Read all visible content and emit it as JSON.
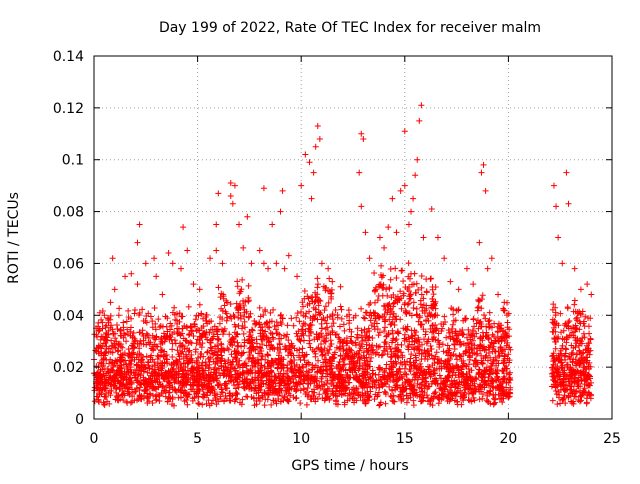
{
  "chart_data": {
    "type": "scatter",
    "title": "Day 199 of 2022, Rate Of TEC Index for receiver malm",
    "xlabel": "GPS time / hours",
    "ylabel": "ROTI / TECUs",
    "xlim": [
      0,
      25
    ],
    "ylim": [
      0,
      0.14
    ],
    "xticks": [
      0,
      5,
      10,
      15,
      20,
      25
    ],
    "yticks": [
      0,
      0.02,
      0.04,
      0.06,
      0.08,
      0.1,
      0.12,
      0.14
    ],
    "xtick_labels": [
      "0",
      "5",
      "10",
      "15",
      "20",
      "25"
    ],
    "ytick_labels": [
      "0",
      "0.02",
      "0.04",
      "0.06",
      "0.08",
      "0.1",
      "0.12",
      "0.14"
    ],
    "grid": true,
    "legend": "none",
    "marker": "+",
    "series_color": "#ff0000",
    "data_gap_hours": [
      20.1,
      22.1
    ],
    "points": [
      [
        0.1,
        0.035
      ],
      [
        0.3,
        0.028
      ],
      [
        0.5,
        0.04
      ],
      [
        0.8,
        0.045
      ],
      [
        0.9,
        0.062
      ],
      [
        1.0,
        0.05
      ],
      [
        1.2,
        0.04
      ],
      [
        1.5,
        0.055
      ],
      [
        1.8,
        0.056
      ],
      [
        2.1,
        0.052
      ],
      [
        2.1,
        0.068
      ],
      [
        2.2,
        0.075
      ],
      [
        2.5,
        0.06
      ],
      [
        2.9,
        0.062
      ],
      [
        3.0,
        0.055
      ],
      [
        3.3,
        0.048
      ],
      [
        3.6,
        0.064
      ],
      [
        3.8,
        0.06
      ],
      [
        4.2,
        0.058
      ],
      [
        4.3,
        0.074
      ],
      [
        4.5,
        0.065
      ],
      [
        4.8,
        0.052
      ],
      [
        5.1,
        0.05
      ],
      [
        5.6,
        0.062
      ],
      [
        5.9,
        0.065
      ],
      [
        5.9,
        0.075
      ],
      [
        6.0,
        0.087
      ],
      [
        6.2,
        0.06
      ],
      [
        6.6,
        0.086
      ],
      [
        6.6,
        0.091
      ],
      [
        6.7,
        0.083
      ],
      [
        6.8,
        0.09
      ],
      [
        7.0,
        0.075
      ],
      [
        7.2,
        0.066
      ],
      [
        7.4,
        0.078
      ],
      [
        7.6,
        0.06
      ],
      [
        8.0,
        0.065
      ],
      [
        8.2,
        0.06
      ],
      [
        8.2,
        0.089
      ],
      [
        8.4,
        0.058
      ],
      [
        8.6,
        0.075
      ],
      [
        8.8,
        0.06
      ],
      [
        9.0,
        0.08
      ],
      [
        9.1,
        0.088
      ],
      [
        9.2,
        0.058
      ],
      [
        9.4,
        0.063
      ],
      [
        9.8,
        0.055
      ],
      [
        10.0,
        0.09
      ],
      [
        10.2,
        0.102
      ],
      [
        10.4,
        0.099
      ],
      [
        10.5,
        0.085
      ],
      [
        10.6,
        0.095
      ],
      [
        10.7,
        0.105
      ],
      [
        10.8,
        0.113
      ],
      [
        10.9,
        0.108
      ],
      [
        11.0,
        0.06
      ],
      [
        11.3,
        0.058
      ],
      [
        11.5,
        0.053
      ],
      [
        11.9,
        0.051
      ],
      [
        12.3,
        0.042
      ],
      [
        12.8,
        0.095
      ],
      [
        12.9,
        0.11
      ],
      [
        12.9,
        0.082
      ],
      [
        13.0,
        0.108
      ],
      [
        13.1,
        0.072
      ],
      [
        13.3,
        0.062
      ],
      [
        13.6,
        0.05
      ],
      [
        13.8,
        0.07
      ],
      [
        14.0,
        0.066
      ],
      [
        14.2,
        0.074
      ],
      [
        14.4,
        0.085
      ],
      [
        14.6,
        0.072
      ],
      [
        14.8,
        0.088
      ],
      [
        15.0,
        0.09
      ],
      [
        15.0,
        0.111
      ],
      [
        15.2,
        0.075
      ],
      [
        15.3,
        0.08
      ],
      [
        15.4,
        0.085
      ],
      [
        15.5,
        0.094
      ],
      [
        15.6,
        0.1
      ],
      [
        15.7,
        0.115
      ],
      [
        15.8,
        0.121
      ],
      [
        15.9,
        0.07
      ],
      [
        16.3,
        0.081
      ],
      [
        16.6,
        0.07
      ],
      [
        16.9,
        0.062
      ],
      [
        17.2,
        0.053
      ],
      [
        17.6,
        0.05
      ],
      [
        18.0,
        0.058
      ],
      [
        18.3,
        0.052
      ],
      [
        18.6,
        0.068
      ],
      [
        18.7,
        0.095
      ],
      [
        18.8,
        0.098
      ],
      [
        18.9,
        0.088
      ],
      [
        19.0,
        0.058
      ],
      [
        19.2,
        0.062
      ],
      [
        19.5,
        0.048
      ],
      [
        19.8,
        0.045
      ],
      [
        22.2,
        0.09
      ],
      [
        22.3,
        0.082
      ],
      [
        22.4,
        0.07
      ],
      [
        22.6,
        0.06
      ],
      [
        22.8,
        0.095
      ],
      [
        22.9,
        0.083
      ],
      [
        23.2,
        0.058
      ],
      [
        23.5,
        0.05
      ],
      [
        23.8,
        0.052
      ],
      [
        24.0,
        0.048
      ]
    ]
  }
}
